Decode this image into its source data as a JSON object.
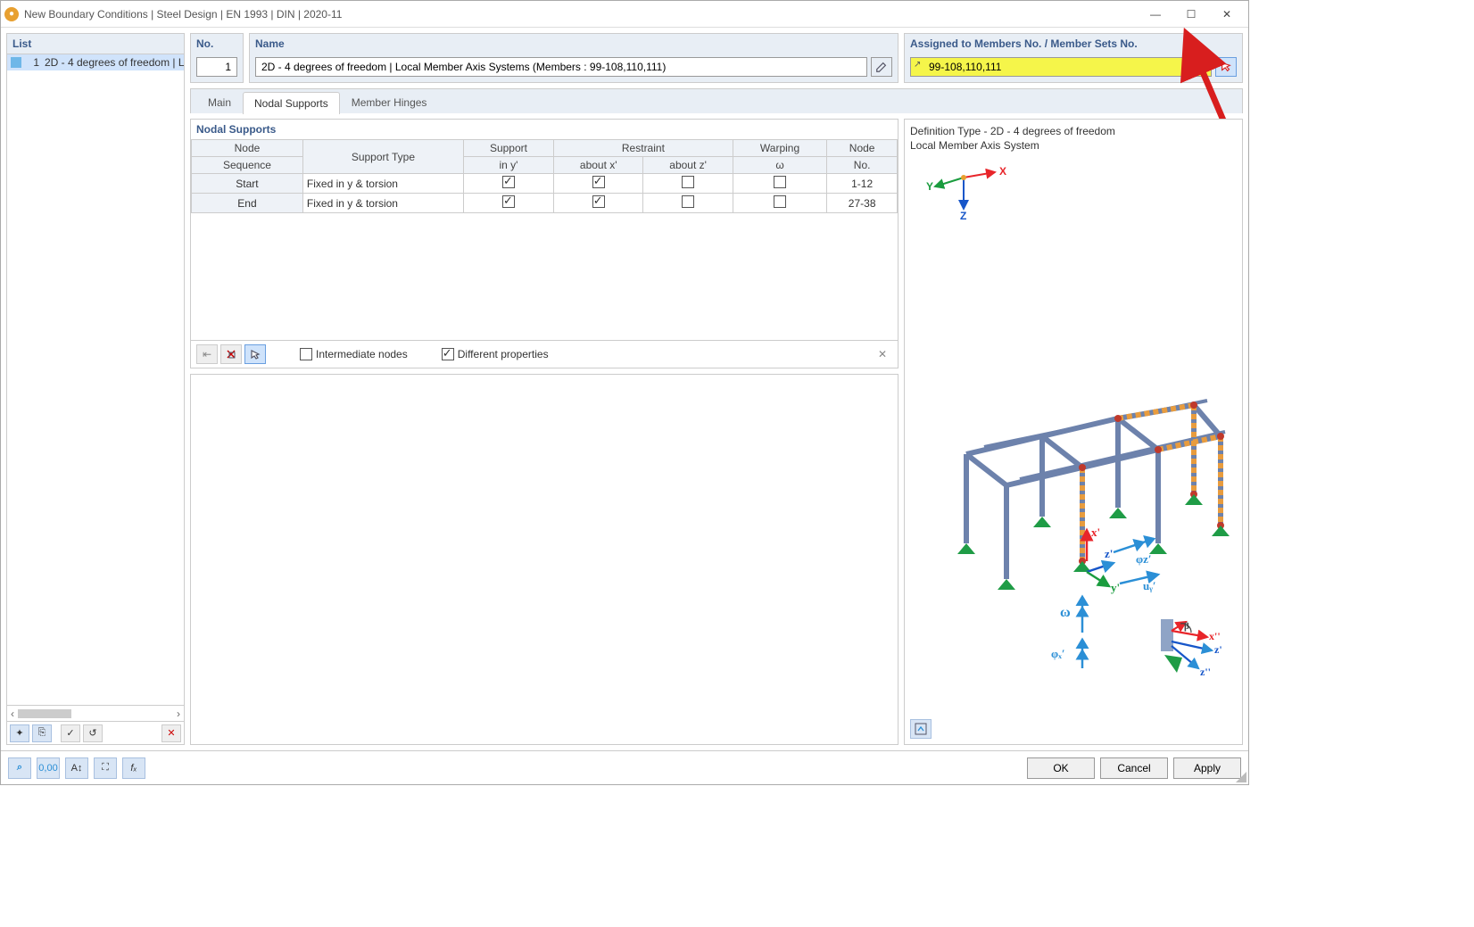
{
  "window_title": "New Boundary Conditions | Steel Design | EN 1993 | DIN | 2020-11",
  "leftpanel": {
    "header": "List",
    "items": [
      {
        "no": "1",
        "text": "2D - 4 degrees of freedom | Local Mer"
      }
    ]
  },
  "fields": {
    "no_label": "No.",
    "no_value": "1",
    "name_label": "Name",
    "name_value": "2D - 4 degrees of freedom | Local Member Axis Systems (Members : 99-108,110,111)",
    "assigned_label": "Assigned to Members No. / Member Sets No.",
    "assigned_value": "99-108,110,111"
  },
  "tabs": {
    "main": "Main",
    "nodal_supports": "Nodal Supports",
    "member_hinges": "Member Hinges",
    "active": "nodal_supports"
  },
  "grid": {
    "title": "Nodal Supports",
    "headers": {
      "node_sequence_top": "Node",
      "node_sequence_bot": "Sequence",
      "support_type": "Support Type",
      "support_top": "Support",
      "support_iny": "in y'",
      "restraint_top": "Restraint",
      "restraint_x": "about x'",
      "restraint_z": "about z'",
      "warping_top": "Warping",
      "warping_w": "ω",
      "node_no_top": "Node",
      "node_no_bot": "No."
    },
    "rows": [
      {
        "seq": "Start",
        "type": "Fixed in y & torsion",
        "iny": true,
        "rx": true,
        "rz": false,
        "w": false,
        "nodeno": "1-12"
      },
      {
        "seq": "End",
        "type": "Fixed in y & torsion",
        "iny": true,
        "rx": true,
        "rz": false,
        "w": false,
        "nodeno": "27-38"
      }
    ],
    "footer": {
      "intermediate_nodes": "Intermediate nodes",
      "intermediate_nodes_on": false,
      "different_properties": "Different properties",
      "different_properties_on": true
    }
  },
  "rightpanel": {
    "definition_type_line1": "Definition Type - 2D - 4 degrees of freedom",
    "definition_type_line2": "Local Member Axis System",
    "axis_x": "X",
    "axis_y": "Y",
    "axis_z": "Z"
  },
  "annot": {
    "xprime": "x'",
    "yprime": "y'",
    "zprime": "z'",
    "phi_x": "φₓ′",
    "phi_z": "φᴢ′",
    "uy": "uᵧ′",
    "omega": "ω",
    "beta": "β",
    "x2": "x''",
    "z2": "z'",
    "z22": "z''"
  },
  "footer": {
    "ok": "OK",
    "cancel": "Cancel",
    "apply": "Apply"
  },
  "colors": {
    "axis_x": "#e8252a",
    "axis_y": "#1a9c3e",
    "axis_z": "#1756c9",
    "annot_blue": "#2b8fd6",
    "highlight_yellow": "#f5f54a",
    "struct_blue": "#8fa4c6",
    "struct_orange": "#e89c3e",
    "struct_green": "#1f9c46",
    "red_arrow": "#d81e1e"
  }
}
